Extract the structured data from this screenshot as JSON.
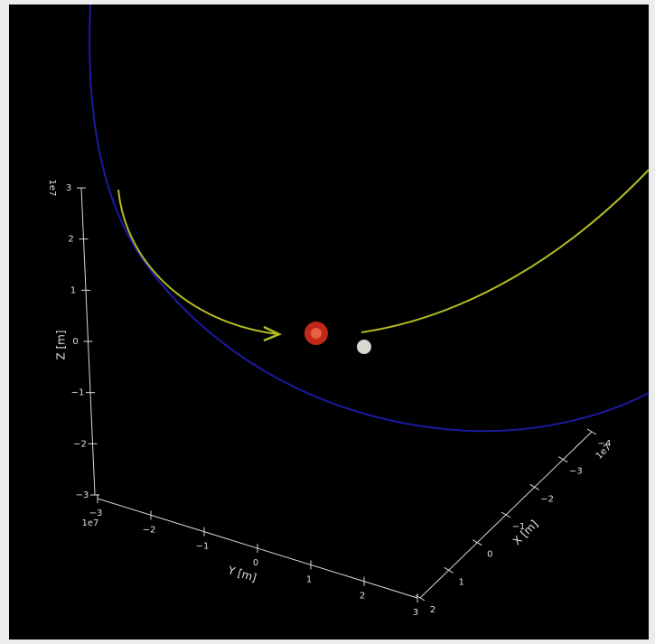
{
  "chart_data": {
    "type": "orbit3d",
    "xlabel": "X [m]",
    "ylabel": "Y [m]",
    "zlabel": "Z [m]",
    "x_offset": "1e7",
    "y_offset": "1e7",
    "z_offset": "1e7",
    "xlim": [
      -4,
      2
    ],
    "ylim": [
      -3,
      3
    ],
    "zlim": [
      -3,
      3
    ],
    "xticks": [
      {
        "value": -4,
        "label": "−4"
      },
      {
        "value": -3,
        "label": "−3"
      },
      {
        "value": -2,
        "label": "−2"
      },
      {
        "value": -1,
        "label": "−1"
      },
      0,
      1,
      2
    ],
    "yticks": [
      {
        "value": -3,
        "label": "−3"
      },
      {
        "value": -2,
        "label": "−2"
      },
      {
        "value": -1,
        "label": "−1"
      },
      0,
      1,
      2,
      3
    ],
    "zticks": [
      {
        "value": -3,
        "label": "−3"
      },
      {
        "value": -2,
        "label": "−2"
      },
      {
        "value": -1,
        "label": "−1"
      },
      0,
      1,
      2,
      3
    ]
  }
}
